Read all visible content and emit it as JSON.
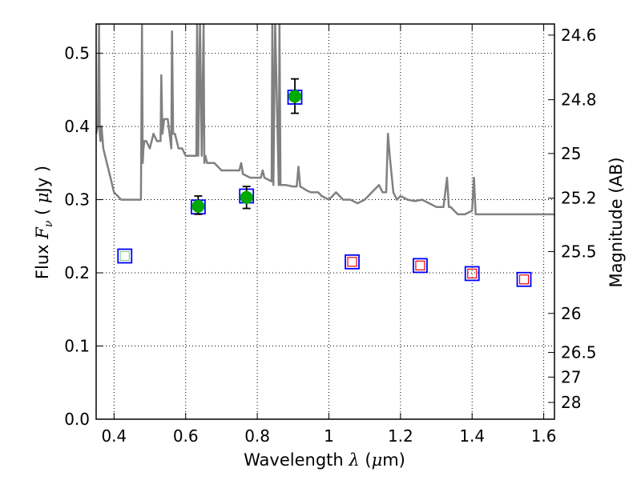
{
  "chart_data": {
    "type": "scatter",
    "xlabel": {
      "pre": "Wavelength ",
      "sym": "λ",
      "unit_pre": " (",
      "unit_sym": "μ",
      "unit_post": "m)"
    },
    "ylabel": {
      "pre": "Flux  ",
      "sym": "F",
      "sub": "ν",
      "unit_pre": "  ( ",
      "unit_sym": "μ",
      "unit_post": "Jy )"
    },
    "y2label": "Magnitude (AB)",
    "xlim": [
      0.35,
      1.63
    ],
    "ylim": [
      0.0,
      0.54
    ],
    "grid": true,
    "x_ticks": [
      0.4,
      0.6,
      0.8,
      1.0,
      1.2,
      1.4,
      1.6
    ],
    "x_tick_labels": [
      "0.4",
      "0.6",
      "0.8",
      "1",
      "1.2",
      "1.4",
      "1.6"
    ],
    "y_ticks": [
      0.0,
      0.1,
      0.2,
      0.3,
      0.4,
      0.5
    ],
    "y_tick_labels": [
      "0.0",
      "0.1",
      "0.2",
      "0.3",
      "0.4",
      "0.5"
    ],
    "y2_ticks": [
      24.6,
      24.8,
      25.0,
      25.2,
      25.5,
      26.0,
      26.5,
      27.0,
      28.0
    ],
    "y2_tick_labels": [
      "24.6",
      "24.8",
      "25",
      "25.2",
      "25.5",
      "26",
      "26.5",
      "27",
      "28"
    ],
    "series": [
      {
        "type": "line",
        "color": "#808080",
        "x": [
          0.35,
          0.355,
          0.358,
          0.36,
          0.362,
          0.365,
          0.37,
          0.38,
          0.39,
          0.4,
          0.42,
          0.44,
          0.46,
          0.475,
          0.478,
          0.48,
          0.482,
          0.485,
          0.49,
          0.5,
          0.51,
          0.52,
          0.53,
          0.532,
          0.535,
          0.54,
          0.55,
          0.56,
          0.562,
          0.565,
          0.57,
          0.58,
          0.59,
          0.6,
          0.61,
          0.62,
          0.63,
          0.632,
          0.635,
          0.64,
          0.645,
          0.65,
          0.652,
          0.655,
          0.66,
          0.68,
          0.7,
          0.72,
          0.74,
          0.75,
          0.755,
          0.76,
          0.78,
          0.8,
          0.81,
          0.815,
          0.82,
          0.84,
          0.842,
          0.845,
          0.85,
          0.86,
          0.862,
          0.865,
          0.87,
          0.88,
          0.9,
          0.91,
          0.915,
          0.92,
          0.93,
          0.94,
          0.95,
          0.96,
          0.97,
          0.98,
          1.0,
          1.02,
          1.04,
          1.05,
          1.06,
          1.08,
          1.1,
          1.12,
          1.13,
          1.14,
          1.15,
          1.16,
          1.165,
          1.17,
          1.18,
          1.19,
          1.2,
          1.22,
          1.24,
          1.26,
          1.28,
          1.3,
          1.32,
          1.33,
          1.335,
          1.34,
          1.36,
          1.38,
          1.4,
          1.405,
          1.41,
          1.42,
          1.44,
          1.46,
          1.48,
          1.5,
          1.52,
          1.54,
          1.56,
          1.58,
          1.6,
          1.62,
          1.63
        ],
        "y": [
          0.39,
          0.4,
          0.54,
          0.39,
          0.38,
          0.4,
          0.37,
          0.35,
          0.33,
          0.31,
          0.3,
          0.3,
          0.3,
          0.3,
          0.54,
          0.35,
          0.37,
          0.38,
          0.38,
          0.37,
          0.39,
          0.38,
          0.38,
          0.47,
          0.39,
          0.41,
          0.41,
          0.37,
          0.53,
          0.39,
          0.39,
          0.37,
          0.37,
          0.36,
          0.36,
          0.36,
          0.36,
          0.54,
          0.36,
          0.54,
          0.36,
          0.54,
          0.35,
          0.36,
          0.35,
          0.35,
          0.34,
          0.34,
          0.34,
          0.34,
          0.35,
          0.335,
          0.33,
          0.33,
          0.33,
          0.34,
          0.33,
          0.325,
          0.54,
          0.32,
          0.54,
          0.32,
          0.54,
          0.32,
          0.32,
          0.32,
          0.318,
          0.318,
          0.345,
          0.318,
          0.315,
          0.312,
          0.31,
          0.31,
          0.31,
          0.305,
          0.3,
          0.31,
          0.3,
          0.3,
          0.3,
          0.295,
          0.3,
          0.31,
          0.315,
          0.32,
          0.31,
          0.31,
          0.39,
          0.36,
          0.31,
          0.3,
          0.305,
          0.3,
          0.298,
          0.3,
          0.295,
          0.29,
          0.29,
          0.33,
          0.29,
          0.29,
          0.28,
          0.28,
          0.285,
          0.33,
          0.28,
          0.28,
          0.28,
          0.28,
          0.28,
          0.28,
          0.28,
          0.28,
          0.28,
          0.28,
          0.28,
          0.28,
          0.28
        ]
      },
      {
        "type": "open-square",
        "edge": "#0000ff",
        "face": "none",
        "x": [
          0.43,
          0.635,
          0.77,
          0.905,
          1.065,
          1.255,
          1.4,
          1.545
        ],
        "y": [
          0.223,
          0.29,
          0.305,
          0.44,
          0.215,
          0.21,
          0.199,
          0.191
        ]
      },
      {
        "type": "small-square",
        "edge": "#ff0000",
        "face": "none",
        "x": [
          1.065,
          1.255,
          1.4,
          1.545
        ],
        "y": [
          0.215,
          0.21,
          0.199,
          0.191
        ]
      },
      {
        "type": "small-square",
        "edge": "#90d090",
        "face": "none",
        "x": [
          0.43
        ],
        "y": [
          0.223
        ]
      },
      {
        "type": "filled-circle",
        "color": "#00aa00",
        "x": [
          0.635,
          0.77,
          0.905
        ],
        "y": [
          0.291,
          0.303,
          0.441
        ],
        "yerr_low": [
          0.28,
          0.288,
          0.418
        ],
        "yerr_high": [
          0.305,
          0.318,
          0.465
        ]
      }
    ]
  }
}
